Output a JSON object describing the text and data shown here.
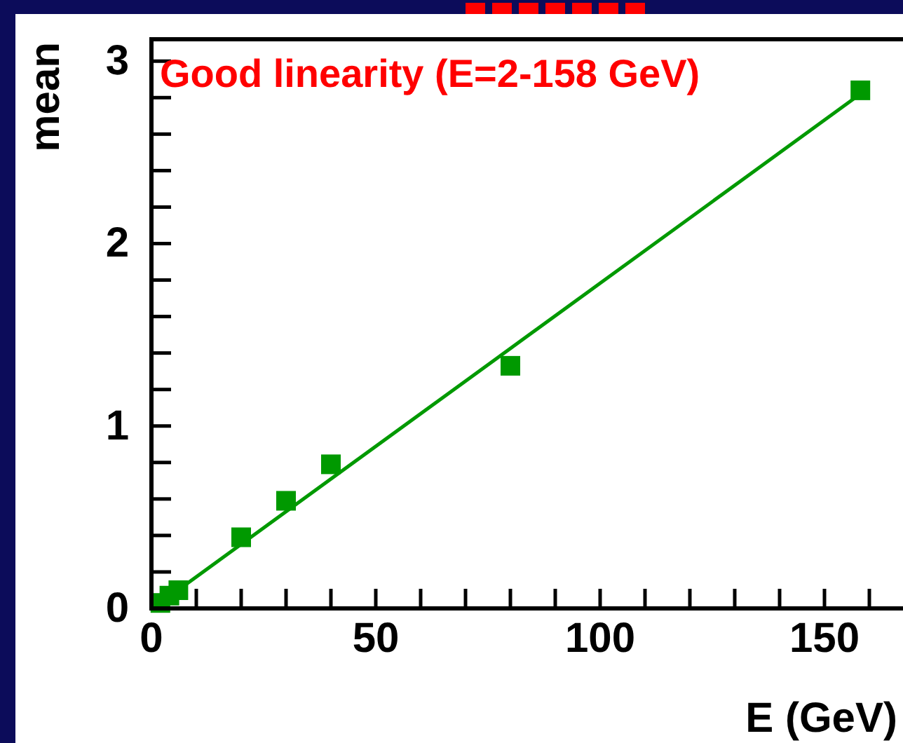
{
  "chart_data": {
    "type": "scatter",
    "xlabel": "E (GeV)",
    "ylabel": "mean",
    "annotations": [
      "Good linearity (E=2-158 GeV)"
    ],
    "series": [
      {
        "color": "#009900",
        "marker": "square",
        "x": [
          2,
          4,
          6,
          20,
          30,
          40,
          80,
          158
        ],
        "values": [
          0.03,
          0.07,
          0.1,
          0.39,
          0.59,
          0.79,
          1.33,
          2.84
        ]
      },
      {
        "type": "line",
        "marker": "none",
        "color": "#009900",
        "x": [
          2,
          158
        ],
        "values": [
          0.03,
          2.82
        ]
      }
    ],
    "xlim": [
      0,
      167.5
    ],
    "ylim": [
      0,
      3.12
    ],
    "xticks": [
      0,
      {
        "value": 10,
        "label": null
      },
      {
        "value": 20,
        "label": null
      },
      {
        "value": 30,
        "label": null
      },
      {
        "value": 40,
        "label": null
      },
      50,
      {
        "value": 60,
        "label": null
      },
      {
        "value": 70,
        "label": null
      },
      {
        "value": 80,
        "label": null
      },
      {
        "value": 90,
        "label": null
      },
      100,
      {
        "value": 110,
        "label": null
      },
      {
        "value": 120,
        "label": null
      },
      {
        "value": 130,
        "label": null
      },
      {
        "value": 140,
        "label": null
      },
      150,
      {
        "value": 160,
        "label": null
      }
    ],
    "yticks": [
      0,
      {
        "value": 0.2,
        "label": null
      },
      {
        "value": 0.4,
        "label": null
      },
      {
        "value": 0.6,
        "label": null
      },
      {
        "value": 0.8,
        "label": null
      },
      1,
      {
        "value": 1.2,
        "label": null
      },
      {
        "value": 1.4,
        "label": null
      },
      {
        "value": 1.6,
        "label": null
      },
      {
        "value": 1.8,
        "label": null
      },
      2,
      {
        "value": 2.2,
        "label": null
      },
      {
        "value": 2.4,
        "label": null
      },
      {
        "value": 2.6,
        "label": null
      },
      {
        "value": 2.8,
        "label": null
      },
      3
    ],
    "grid": false
  }
}
